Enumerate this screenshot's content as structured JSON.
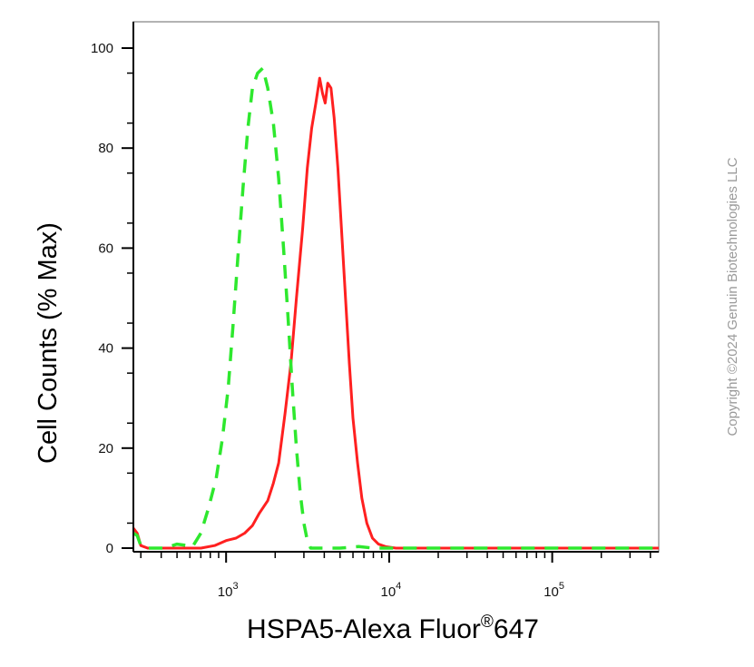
{
  "chart_data": {
    "type": "line",
    "title": "",
    "xlabel": "HSPA5-Alexa Fluor",
    "xlabel_superscript": "®",
    "xlabel_suffix": "647",
    "ylabel": "Cell Counts (% Max)",
    "x_scale": "log",
    "xlim": [
      270,
      450000
    ],
    "ylim": [
      0,
      102
    ],
    "yticks": [
      0,
      20,
      40,
      60,
      80,
      100
    ],
    "ytick_labels": [
      "0",
      "20",
      "40",
      "60",
      "80",
      "100"
    ],
    "xticks": [
      1000,
      10000,
      100000
    ],
    "xtick_labels": [
      {
        "base": "10",
        "exp": "3"
      },
      {
        "base": "10",
        "exp": "4"
      },
      {
        "base": "10",
        "exp": "5"
      }
    ],
    "grid": false,
    "series": [
      {
        "style": "solid",
        "color": "#ff2020",
        "points": [
          [
            270,
            4
          ],
          [
            285,
            3
          ],
          [
            300,
            0.5
          ],
          [
            330,
            0
          ],
          [
            500,
            0
          ],
          [
            700,
            0
          ],
          [
            850,
            0.5
          ],
          [
            1000,
            1.5
          ],
          [
            1150,
            2
          ],
          [
            1300,
            3
          ],
          [
            1450,
            4.5
          ],
          [
            1600,
            7
          ],
          [
            1800,
            9.5
          ],
          [
            1950,
            13
          ],
          [
            2100,
            17
          ],
          [
            2300,
            27
          ],
          [
            2500,
            37
          ],
          [
            2700,
            50
          ],
          [
            2950,
            64
          ],
          [
            3150,
            76
          ],
          [
            3350,
            84
          ],
          [
            3550,
            89
          ],
          [
            3750,
            94
          ],
          [
            3900,
            91
          ],
          [
            4050,
            89
          ],
          [
            4200,
            93
          ],
          [
            4400,
            92
          ],
          [
            4600,
            86
          ],
          [
            4850,
            76
          ],
          [
            5100,
            64
          ],
          [
            5400,
            50
          ],
          [
            5700,
            37
          ],
          [
            6000,
            26
          ],
          [
            6400,
            17
          ],
          [
            6800,
            10
          ],
          [
            7300,
            5
          ],
          [
            7900,
            2
          ],
          [
            8600,
            0.8
          ],
          [
            9500,
            0.3
          ],
          [
            11000,
            0
          ],
          [
            450000,
            0
          ]
        ]
      },
      {
        "style": "dashed",
        "color": "#2ee82e",
        "points": [
          [
            270,
            3
          ],
          [
            285,
            2.5
          ],
          [
            300,
            0.5
          ],
          [
            330,
            0
          ],
          [
            420,
            0
          ],
          [
            500,
            0.8
          ],
          [
            580,
            0.5
          ],
          [
            620,
            0.2
          ],
          [
            700,
            3
          ],
          [
            780,
            8
          ],
          [
            870,
            14
          ],
          [
            950,
            22
          ],
          [
            1030,
            32
          ],
          [
            1100,
            44
          ],
          [
            1180,
            58
          ],
          [
            1270,
            72
          ],
          [
            1360,
            84
          ],
          [
            1450,
            92
          ],
          [
            1560,
            95
          ],
          [
            1680,
            96
          ],
          [
            1800,
            92
          ],
          [
            1950,
            85
          ],
          [
            2100,
            74
          ],
          [
            2250,
            60
          ],
          [
            2400,
            46
          ],
          [
            2550,
            32
          ],
          [
            2700,
            20
          ],
          [
            2850,
            11
          ],
          [
            3000,
            5
          ],
          [
            3150,
            1.5
          ],
          [
            3300,
            0
          ],
          [
            5000,
            0
          ],
          [
            6500,
            0.3
          ],
          [
            8000,
            0
          ],
          [
            450000,
            0
          ]
        ]
      }
    ]
  },
  "watermark": "Copyright ©2024 Genuin Biotechnologies LLC"
}
